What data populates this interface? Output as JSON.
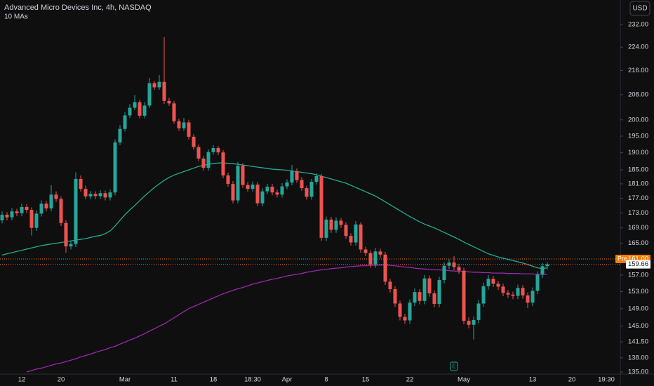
{
  "chart_data": {
    "type": "candlestick",
    "title": "Advanced Micro Devices Inc, 4h, NASDAQ",
    "indicator_label": "10 MAs",
    "currency": "USD",
    "earnings_marker": "E",
    "log_scale": true,
    "grid": false,
    "up_color": "#26a69a",
    "down_color": "#ef5350",
    "ylim": [
      134.7,
      241.1
    ],
    "yticks": [
      {
        "value": 232,
        "label": "232.00"
      },
      {
        "value": 224,
        "label": "224.00"
      },
      {
        "value": 216,
        "label": "216.00"
      },
      {
        "value": 208,
        "label": "208.00"
      },
      {
        "value": 200,
        "label": "200.00"
      },
      {
        "value": 195,
        "label": "195.00"
      },
      {
        "value": 190,
        "label": "190.00"
      },
      {
        "value": 185,
        "label": "185.00"
      },
      {
        "value": 181,
        "label": "181.00"
      },
      {
        "value": 177,
        "label": "177.00"
      },
      {
        "value": 173,
        "label": "173.00"
      },
      {
        "value": 169,
        "label": "169.00"
      },
      {
        "value": 165,
        "label": "165.00"
      },
      {
        "value": 157,
        "label": "157.00"
      },
      {
        "value": 153,
        "label": "153.00"
      },
      {
        "value": 149,
        "label": "149.00"
      },
      {
        "value": 145,
        "label": "145.00"
      },
      {
        "value": 141.5,
        "label": "141.50"
      },
      {
        "value": 138,
        "label": "138.00"
      },
      {
        "value": 135,
        "label": "135.00"
      }
    ],
    "pre_market": {
      "label": "Pre",
      "price": {
        "value": 161,
        "label": "161.00"
      },
      "color": "#f57c00"
    },
    "categories": [
      null,
      null,
      null,
      null,
      "12",
      null,
      null,
      null,
      null,
      null,
      null,
      null,
      "20",
      null,
      null,
      null,
      null,
      null,
      null,
      null,
      null,
      null,
      null,
      null,
      null,
      "Mar",
      null,
      null,
      null,
      null,
      null,
      null,
      null,
      null,
      null,
      "11",
      null,
      null,
      null,
      null,
      null,
      null,
      null,
      "18",
      null,
      null,
      null,
      null,
      null,
      null,
      null,
      "18:30",
      null,
      null,
      null,
      null,
      null,
      null,
      "Apr",
      null,
      null,
      null,
      null,
      null,
      null,
      null,
      "8",
      null,
      null,
      null,
      null,
      null,
      null,
      null,
      "15",
      null,
      null,
      null,
      null,
      null,
      null,
      null,
      null,
      "22",
      null,
      null,
      null,
      null,
      null,
      null,
      null,
      null,
      null,
      null,
      "May",
      null,
      null,
      null,
      null,
      null,
      null,
      null,
      null,
      null,
      null,
      null,
      null,
      null,
      "13",
      null,
      null,
      null,
      null,
      null,
      null,
      null,
      "20",
      null,
      null,
      null,
      null,
      null,
      null,
      "19:30"
    ],
    "open": [
      171.0,
      172.5,
      171.8,
      173.4,
      172.9,
      174.6,
      173.8,
      169.0,
      172.8,
      175.5,
      174.2,
      178.0,
      176.8,
      170.3,
      164.2,
      164.8,
      182.4,
      179.6,
      177.5,
      178.2,
      177.6,
      178.4,
      177.2,
      178.6,
      193.1,
      197.2,
      201.4,
      203.8,
      205.6,
      201.3,
      204.5,
      211.8,
      210.4,
      212.2,
      206.0,
      205.2,
      199.6,
      197.4,
      199.2,
      194.8,
      191.7,
      188.3,
      185.6,
      190.2,
      191.4,
      190.1,
      183.4,
      181.0,
      176.4,
      186.2,
      180.7,
      179.6,
      180.8,
      175.6,
      178.9,
      180.2,
      178.6,
      178.0,
      180.3,
      181.4,
      184.6,
      182.1,
      179.8,
      177.4,
      181.6,
      183.2,
      166.4,
      171.2,
      168.5,
      170.9,
      169.8,
      166.9,
      165.2,
      169.9,
      163.4,
      162.5,
      159.6,
      162.9,
      162.1,
      155.4,
      153.6,
      150.2,
      147.1,
      146.3,
      150.4,
      152.9,
      150.8,
      156.2,
      152.6,
      150.1,
      155.8,
      159.3,
      160.1,
      159.0,
      158.1,
      146.2,
      145.3,
      146.4,
      150.2,
      154.3,
      156.1,
      154.9,
      154.2,
      152.7,
      152.3,
      152.0,
      153.9,
      152.1,
      150.4,
      153.2,
      157.1,
      159.2,
      null,
      null,
      null,
      null,
      null,
      null,
      null,
      null,
      null,
      null,
      null,
      null
    ],
    "high": [
      173.4,
      173.2,
      174.3,
      174.1,
      175.5,
      175.3,
      174.5,
      173.7,
      176.4,
      176.3,
      180.6,
      178.9,
      177.5,
      171.0,
      165.6,
      184.3,
      183.4,
      180.5,
      179.0,
      178.9,
      179.2,
      179.1,
      179.4,
      194.0,
      198.4,
      202.5,
      205.0,
      207.9,
      206.4,
      205.6,
      213.5,
      212.6,
      214.5,
      227.5,
      207.0,
      206.0,
      200.4,
      200.6,
      200.0,
      195.6,
      192.5,
      189.0,
      191.0,
      192.3,
      192.0,
      190.8,
      184.2,
      181.8,
      187.3,
      187.0,
      181.5,
      181.7,
      181.5,
      179.8,
      181.0,
      181.0,
      179.4,
      181.2,
      182.3,
      186.4,
      185.4,
      182.9,
      180.5,
      182.4,
      184.0,
      183.9,
      172.0,
      171.9,
      171.8,
      171.6,
      170.5,
      167.6,
      170.8,
      170.5,
      164.1,
      163.2,
      163.8,
      163.6,
      162.8,
      156.1,
      154.3,
      150.9,
      147.8,
      151.2,
      153.8,
      153.6,
      157.0,
      156.9,
      153.3,
      156.6,
      160.2,
      160.9,
      161.7,
      159.8,
      158.8,
      147.0,
      147.2,
      151.0,
      155.2,
      157.0,
      156.8,
      155.6,
      154.9,
      153.4,
      153.0,
      154.7,
      154.6,
      152.8,
      154.0,
      157.9,
      160.0,
      160.2,
      null,
      null,
      null,
      null,
      null,
      null,
      null,
      null,
      null,
      null,
      null,
      null
    ],
    "low": [
      170.2,
      171.0,
      171.0,
      172.1,
      172.1,
      173.0,
      167.0,
      168.2,
      172.0,
      173.4,
      173.4,
      176.0,
      169.5,
      162.6,
      163.4,
      164.0,
      178.8,
      176.7,
      176.7,
      176.8,
      176.8,
      176.4,
      176.4,
      177.8,
      192.3,
      196.4,
      200.6,
      203.0,
      200.5,
      200.5,
      203.7,
      209.6,
      209.6,
      205.0,
      204.4,
      198.8,
      196.6,
      196.6,
      194.0,
      190.9,
      187.5,
      184.8,
      184.8,
      189.4,
      189.3,
      182.6,
      180.2,
      175.6,
      175.6,
      179.9,
      178.8,
      178.8,
      174.8,
      174.8,
      178.1,
      177.8,
      177.2,
      177.2,
      179.5,
      180.6,
      181.3,
      179.0,
      176.6,
      176.6,
      180.8,
      165.6,
      165.6,
      167.7,
      167.7,
      169.0,
      166.1,
      164.4,
      164.4,
      162.6,
      161.7,
      158.8,
      158.8,
      161.3,
      154.6,
      152.8,
      149.4,
      146.3,
      145.5,
      145.5,
      149.6,
      150.0,
      150.0,
      151.8,
      149.3,
      149.3,
      155.0,
      158.5,
      158.2,
      157.3,
      145.4,
      144.5,
      142.0,
      145.6,
      149.4,
      153.5,
      154.1,
      153.4,
      151.9,
      151.5,
      151.2,
      151.2,
      151.3,
      149.1,
      149.6,
      152.4,
      156.3,
      158.4,
      null,
      null,
      null,
      null,
      null,
      null,
      null,
      null,
      null,
      null,
      null,
      null
    ],
    "close": [
      172.5,
      171.8,
      173.4,
      172.9,
      174.6,
      173.8,
      169.0,
      172.8,
      175.5,
      174.2,
      178.0,
      176.8,
      170.3,
      164.2,
      164.8,
      182.4,
      179.6,
      177.5,
      178.2,
      177.6,
      178.4,
      177.2,
      178.6,
      193.1,
      197.2,
      201.4,
      203.8,
      205.6,
      201.3,
      204.5,
      211.8,
      210.4,
      212.2,
      206.0,
      205.2,
      199.6,
      197.4,
      199.2,
      194.8,
      191.7,
      188.3,
      185.6,
      190.2,
      191.4,
      190.1,
      183.4,
      181.0,
      176.4,
      186.2,
      180.7,
      179.6,
      180.8,
      175.6,
      178.9,
      180.2,
      178.6,
      178.0,
      180.3,
      181.4,
      184.6,
      182.1,
      179.8,
      177.4,
      181.6,
      183.2,
      166.4,
      171.2,
      168.5,
      170.9,
      169.8,
      166.9,
      165.2,
      169.9,
      163.4,
      162.5,
      159.6,
      162.9,
      162.1,
      155.4,
      153.6,
      150.2,
      147.1,
      146.3,
      150.4,
      152.9,
      150.8,
      156.2,
      152.6,
      150.1,
      155.8,
      159.3,
      160.1,
      159.0,
      158.1,
      146.2,
      145.3,
      146.4,
      150.2,
      154.3,
      156.1,
      154.9,
      154.2,
      152.7,
      152.3,
      152.0,
      153.9,
      152.1,
      150.4,
      153.2,
      157.1,
      159.2,
      159.66,
      null,
      null,
      null,
      null,
      null,
      null,
      null,
      null,
      null,
      null,
      null,
      null
    ],
    "series": [
      {
        "color": "#22ab94",
        "values": [
          162.0,
          162.3,
          162.6,
          162.9,
          163.2,
          163.5,
          163.8,
          164.1,
          164.4,
          164.6,
          164.8,
          165.0,
          165.2,
          165.4,
          165.6,
          165.8,
          166.0,
          166.2,
          166.5,
          166.8,
          167.0,
          167.5,
          168.2,
          169.5,
          171.0,
          172.5,
          173.8,
          175.0,
          176.3,
          177.6,
          178.8,
          180.0,
          181.0,
          182.0,
          182.8,
          183.5,
          184.0,
          184.5,
          185.0,
          185.5,
          186.0,
          186.3,
          186.6,
          186.8,
          187.0,
          187.0,
          186.9,
          186.8,
          186.6,
          186.4,
          186.2,
          186.0,
          185.8,
          185.6,
          185.4,
          185.2,
          185.1,
          185.0,
          184.9,
          184.7,
          184.5,
          184.3,
          184.1,
          183.9,
          183.6,
          183.2,
          182.8,
          182.4,
          182.0,
          181.6,
          181.2,
          180.6,
          180.0,
          179.4,
          178.8,
          178.2,
          177.6,
          176.8,
          176.0,
          175.2,
          174.4,
          173.6,
          172.8,
          172.0,
          171.3,
          170.6,
          170.0,
          169.5,
          169.0,
          168.4,
          167.8,
          167.2,
          166.6,
          166.0,
          165.3,
          164.7,
          164.1,
          163.5,
          162.9,
          162.3,
          161.9,
          161.5,
          161.2,
          160.9,
          160.6,
          160.3,
          160.0,
          159.6,
          159.2,
          158.8,
          158.6,
          158.8,
          null,
          null,
          null,
          null,
          null,
          null,
          null,
          null,
          null,
          null,
          null,
          null
        ]
      },
      {
        "color": "#9c27b0",
        "values": [
          null,
          null,
          null,
          null,
          null,
          135.0,
          135.3,
          135.6,
          135.8,
          136.1,
          136.4,
          136.7,
          136.9,
          137.2,
          137.5,
          137.8,
          138.2,
          138.5,
          138.8,
          139.2,
          139.5,
          139.8,
          140.2,
          140.5,
          141.0,
          141.4,
          141.9,
          142.3,
          142.8,
          143.3,
          143.9,
          144.4,
          145.0,
          145.5,
          146.2,
          146.9,
          147.6,
          148.3,
          149.0,
          149.5,
          150.0,
          150.5,
          151.0,
          151.5,
          152.0,
          152.5,
          152.9,
          153.3,
          153.7,
          154.0,
          154.4,
          154.8,
          155.1,
          155.4,
          155.7,
          156.0,
          156.2,
          156.5,
          156.8,
          157.0,
          157.2,
          157.4,
          157.7,
          157.9,
          158.1,
          158.3,
          158.4,
          158.6,
          158.7,
          158.8,
          159.0,
          159.1,
          159.2,
          159.3,
          159.3,
          159.4,
          159.4,
          159.5,
          159.5,
          159.4,
          159.3,
          159.1,
          159.0,
          158.9,
          158.7,
          158.6,
          158.5,
          158.4,
          158.3,
          158.3,
          158.2,
          158.1,
          158.0,
          157.9,
          157.9,
          157.8,
          157.7,
          157.7,
          157.6,
          157.6,
          157.5,
          157.5,
          157.5,
          157.4,
          157.4,
          157.4,
          157.3,
          157.3,
          157.3,
          157.2,
          157.2,
          157.2,
          null,
          null,
          null,
          null,
          null,
          null,
          null,
          null,
          null,
          null,
          null,
          null
        ]
      }
    ]
  }
}
